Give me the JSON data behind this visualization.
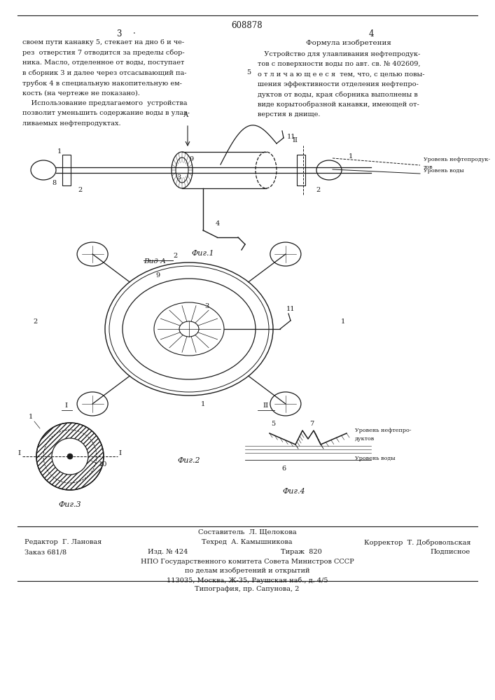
{
  "patent_number": "608878",
  "page_left": "3",
  "page_right": "4",
  "left_text": [
    "своем пути канавку 5, стекает на дно 6 и че-",
    "рез  отверстия 7 отводится за пределы сбор-",
    "ника. Масло, отделенное от воды, поступает",
    "в сборник 3 и далее через отсасывающий па-",
    "трубок 4 в специальную накопительную ем-",
    "кость (на чертеже не показано).",
    "    Использование предлагаемого  устройства",
    "позволит уменьшить содержание воды в улав-",
    "ливаемых нефтепродуктах."
  ],
  "right_title": "Формула изобретения",
  "right_text": [
    "   Устройство для улавливания нефтепродук-",
    "тов с поверхности воды по авт. св. № 402609,",
    "о т л и ч а ю щ е е с я  тем, что, с целью повы-",
    "шения эффективности отделения нефтепро-",
    "дуктов от воды, края сборника выполнены в",
    "виде корытообразной канавки, имеющей от-",
    "верстия в днище."
  ],
  "fig1_label": "Фиг.1",
  "fig2_label": "Фиг.2",
  "fig3_label": "Фиг.3",
  "fig4_label": "Фиг.4",
  "fig1_view_label": "Вид А",
  "bottom_line1_left": "Редактор  Г. Лановая",
  "bottom_line1_center": "Техред  А. Камышникова",
  "bottom_line1_right": "Корректор  Т. Добровольская",
  "bottom_line2_left": "Заказ 681/8",
  "bottom_line2_c1": "Изд. № 424",
  "bottom_line2_c2": "Тираж  820",
  "bottom_line2_right": "Подписное",
  "bottom_line3": "НПО Государственного комитета Совета Министров СССР",
  "bottom_line4": "по делам изобретений и открытий",
  "bottom_line5": "113035, Москва, Ж-35, Раушская наб., д. 4/5",
  "bottom_line6": "Типография, пр. Сапунова, 2",
  "bg_color": "#ffffff",
  "text_color": "#1a1a1a"
}
